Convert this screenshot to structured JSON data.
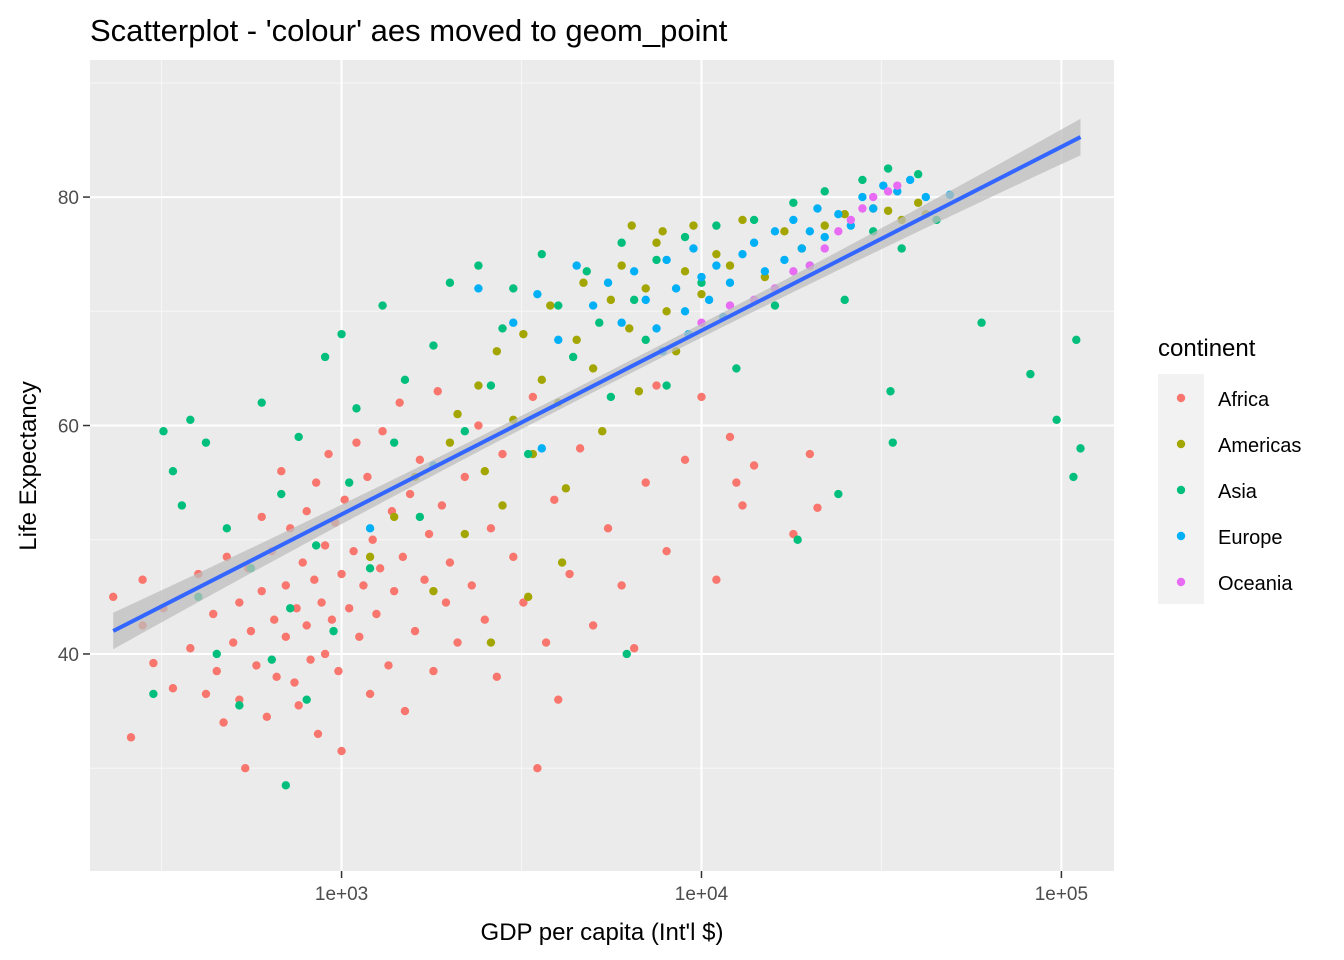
{
  "chart_data": {
    "type": "scatter",
    "title": "Scatterplot - 'colour' aes moved to geom_point",
    "xlabel": "GDP per capita (Int'l $)",
    "ylabel": "Life Expectancy",
    "x_scale": "log10",
    "xlim": [
      200,
      140000
    ],
    "ylim": [
      21,
      92
    ],
    "x_ticks": [
      {
        "value": 1000,
        "label": "1e+03"
      },
      {
        "value": 10000,
        "label": "1e+04"
      },
      {
        "value": 100000,
        "label": "1e+05"
      }
    ],
    "y_ticks": [
      {
        "value": 40,
        "label": "40"
      },
      {
        "value": 60,
        "label": "60"
      },
      {
        "value": 80,
        "label": "80"
      }
    ],
    "grid": true,
    "legend": {
      "title": "continent",
      "placement": "right",
      "entries": [
        {
          "label": "Africa",
          "color": "#F8766D"
        },
        {
          "label": "Americas",
          "color": "#A3A500"
        },
        {
          "label": "Asia",
          "color": "#00BF7D"
        },
        {
          "label": "Europe",
          "color": "#00B0F6"
        },
        {
          "label": "Oceania",
          "color": "#E76BF3"
        }
      ]
    },
    "series": [
      {
        "name": "Africa",
        "color": "#F8766D",
        "points": [
          [
            232,
            45.0
          ],
          [
            280,
            46.5
          ],
          [
            260,
            32.7
          ],
          [
            300,
            39.2
          ],
          [
            280,
            42.5
          ],
          [
            320,
            44.0
          ],
          [
            340,
            37.0
          ],
          [
            380,
            40.5
          ],
          [
            400,
            47.0
          ],
          [
            420,
            36.5
          ],
          [
            440,
            43.5
          ],
          [
            450,
            38.5
          ],
          [
            470,
            34.0
          ],
          [
            480,
            48.5
          ],
          [
            500,
            41.0
          ],
          [
            520,
            44.5
          ],
          [
            520,
            36.0
          ],
          [
            540,
            30.0
          ],
          [
            550,
            47.5
          ],
          [
            560,
            42.0
          ],
          [
            580,
            39.0
          ],
          [
            600,
            45.5
          ],
          [
            600,
            52.0
          ],
          [
            620,
            34.5
          ],
          [
            640,
            49.0
          ],
          [
            650,
            43.0
          ],
          [
            660,
            38.0
          ],
          [
            680,
            56.0
          ],
          [
            700,
            46.0
          ],
          [
            700,
            41.5
          ],
          [
            720,
            51.0
          ],
          [
            740,
            37.5
          ],
          [
            750,
            44.0
          ],
          [
            760,
            35.5
          ],
          [
            780,
            48.0
          ],
          [
            800,
            42.5
          ],
          [
            800,
            52.5
          ],
          [
            820,
            39.5
          ],
          [
            840,
            46.5
          ],
          [
            850,
            55.0
          ],
          [
            860,
            33.0
          ],
          [
            880,
            44.5
          ],
          [
            900,
            49.5
          ],
          [
            900,
            40.0
          ],
          [
            920,
            57.5
          ],
          [
            940,
            43.0
          ],
          [
            960,
            51.5
          ],
          [
            980,
            38.5
          ],
          [
            1000,
            47.0
          ],
          [
            1000,
            31.5
          ],
          [
            1020,
            53.5
          ],
          [
            1050,
            44.0
          ],
          [
            1080,
            49.0
          ],
          [
            1100,
            58.5
          ],
          [
            1120,
            41.5
          ],
          [
            1150,
            46.0
          ],
          [
            1180,
            55.5
          ],
          [
            1200,
            36.5
          ],
          [
            1220,
            50.0
          ],
          [
            1250,
            43.5
          ],
          [
            1280,
            47.5
          ],
          [
            1300,
            59.5
          ],
          [
            1350,
            39.0
          ],
          [
            1380,
            52.5
          ],
          [
            1400,
            45.5
          ],
          [
            1450,
            62.0
          ],
          [
            1480,
            48.5
          ],
          [
            1500,
            35.0
          ],
          [
            1550,
            54.0
          ],
          [
            1600,
            42.0
          ],
          [
            1650,
            57.0
          ],
          [
            1700,
            46.5
          ],
          [
            1750,
            50.5
          ],
          [
            1800,
            38.5
          ],
          [
            1850,
            63.0
          ],
          [
            1900,
            53.0
          ],
          [
            1950,
            44.5
          ],
          [
            2000,
            48.0
          ],
          [
            2100,
            41.0
          ],
          [
            2200,
            55.5
          ],
          [
            2300,
            46.0
          ],
          [
            2400,
            60.0
          ],
          [
            2500,
            43.0
          ],
          [
            2600,
            51.0
          ],
          [
            2700,
            38.0
          ],
          [
            2800,
            57.5
          ],
          [
            3000,
            48.5
          ],
          [
            3200,
            44.5
          ],
          [
            3400,
            62.5
          ],
          [
            3500,
            30.0
          ],
          [
            3700,
            41.0
          ],
          [
            3900,
            53.5
          ],
          [
            4000,
            36.0
          ],
          [
            4300,
            47.0
          ],
          [
            4600,
            58.0
          ],
          [
            5000,
            42.5
          ],
          [
            5500,
            51.0
          ],
          [
            6000,
            46.0
          ],
          [
            6500,
            40.5
          ],
          [
            7000,
            55.0
          ],
          [
            7500,
            63.5
          ],
          [
            8000,
            49.0
          ],
          [
            9000,
            57.0
          ],
          [
            10000,
            62.5
          ],
          [
            11000,
            46.5
          ],
          [
            12000,
            59.0
          ],
          [
            12500,
            55.0
          ],
          [
            13000,
            53.0
          ],
          [
            14000,
            56.5
          ],
          [
            18000,
            50.5
          ],
          [
            20000,
            57.5
          ],
          [
            21000,
            52.8
          ]
        ]
      },
      {
        "name": "Americas",
        "color": "#A3A500",
        "points": [
          [
            1200,
            48.5
          ],
          [
            1400,
            52.0
          ],
          [
            1600,
            55.5
          ],
          [
            1800,
            45.5
          ],
          [
            2000,
            58.5
          ],
          [
            2100,
            61.0
          ],
          [
            2200,
            50.5
          ],
          [
            2400,
            63.5
          ],
          [
            2500,
            56.0
          ],
          [
            2700,
            66.5
          ],
          [
            2800,
            53.0
          ],
          [
            3000,
            60.5
          ],
          [
            3200,
            68.0
          ],
          [
            3400,
            57.5
          ],
          [
            3600,
            64.0
          ],
          [
            3800,
            70.5
          ],
          [
            4000,
            62.0
          ],
          [
            4200,
            54.5
          ],
          [
            4500,
            67.5
          ],
          [
            4700,
            72.5
          ],
          [
            5000,
            65.0
          ],
          [
            5300,
            59.5
          ],
          [
            5600,
            71.0
          ],
          [
            6000,
            74.0
          ],
          [
            6300,
            68.5
          ],
          [
            6700,
            63.0
          ],
          [
            7000,
            72.0
          ],
          [
            7500,
            76.0
          ],
          [
            8000,
            70.0
          ],
          [
            8500,
            66.5
          ],
          [
            9000,
            73.5
          ],
          [
            9500,
            77.5
          ],
          [
            10000,
            71.5
          ],
          [
            11000,
            75.0
          ],
          [
            12000,
            74.0
          ],
          [
            13000,
            78.0
          ],
          [
            15000,
            73.0
          ],
          [
            17000,
            77.0
          ],
          [
            19000,
            75.5
          ],
          [
            22000,
            77.5
          ],
          [
            25000,
            78.5
          ],
          [
            30000,
            79.0
          ],
          [
            33000,
            78.8
          ],
          [
            36000,
            78.0
          ],
          [
            40000,
            79.5
          ],
          [
            42000,
            78.5
          ],
          [
            6400,
            77.5
          ],
          [
            7800,
            77.0
          ],
          [
            2600,
            41.0
          ],
          [
            3300,
            45.0
          ],
          [
            4100,
            48.0
          ]
        ]
      },
      {
        "name": "Asia",
        "color": "#00BF7D",
        "points": [
          [
            300,
            36.5
          ],
          [
            320,
            59.5
          ],
          [
            340,
            56.0
          ],
          [
            360,
            53.0
          ],
          [
            380,
            60.5
          ],
          [
            400,
            45.0
          ],
          [
            420,
            58.5
          ],
          [
            450,
            40.0
          ],
          [
            480,
            51.0
          ],
          [
            520,
            35.5
          ],
          [
            560,
            47.5
          ],
          [
            600,
            62.0
          ],
          [
            640,
            39.5
          ],
          [
            680,
            54.0
          ],
          [
            700,
            28.5
          ],
          [
            720,
            44.0
          ],
          [
            760,
            59.0
          ],
          [
            800,
            36.0
          ],
          [
            850,
            49.5
          ],
          [
            900,
            66.0
          ],
          [
            950,
            42.0
          ],
          [
            1000,
            68.0
          ],
          [
            1050,
            55.0
          ],
          [
            1100,
            61.5
          ],
          [
            1200,
            47.5
          ],
          [
            1300,
            70.5
          ],
          [
            1400,
            58.5
          ],
          [
            1500,
            64.0
          ],
          [
            1650,
            52.0
          ],
          [
            1800,
            67.0
          ],
          [
            2000,
            72.5
          ],
          [
            2200,
            59.5
          ],
          [
            2400,
            74.0
          ],
          [
            2600,
            63.5
          ],
          [
            2800,
            68.5
          ],
          [
            3000,
            72.0
          ],
          [
            3300,
            57.5
          ],
          [
            3600,
            75.0
          ],
          [
            4000,
            70.5
          ],
          [
            4400,
            66.0
          ],
          [
            4800,
            73.5
          ],
          [
            5200,
            69.0
          ],
          [
            5600,
            62.5
          ],
          [
            6000,
            76.0
          ],
          [
            6500,
            71.0
          ],
          [
            7000,
            67.5
          ],
          [
            7500,
            74.5
          ],
          [
            8000,
            63.5
          ],
          [
            9000,
            76.5
          ],
          [
            10000,
            72.5
          ],
          [
            11000,
            77.5
          ],
          [
            12500,
            65.0
          ],
          [
            14000,
            78.0
          ],
          [
            16000,
            70.5
          ],
          [
            18000,
            79.5
          ],
          [
            20000,
            74.0
          ],
          [
            22000,
            80.5
          ],
          [
            25000,
            71.0
          ],
          [
            28000,
            81.5
          ],
          [
            30000,
            77.0
          ],
          [
            33000,
            82.5
          ],
          [
            36000,
            75.5
          ],
          [
            40000,
            82.0
          ],
          [
            45000,
            78.0
          ],
          [
            60000,
            69.0
          ],
          [
            82000,
            64.5
          ],
          [
            97000,
            60.5
          ],
          [
            108000,
            55.5
          ],
          [
            110000,
            67.5
          ],
          [
            113000,
            58.0
          ],
          [
            33500,
            63.0
          ],
          [
            34000,
            58.5
          ],
          [
            24000,
            54.0
          ],
          [
            18500,
            50.0
          ],
          [
            6200,
            40.0
          ]
        ]
      },
      {
        "name": "Europe",
        "color": "#00B0F6",
        "points": [
          [
            2400,
            72.0
          ],
          [
            3000,
            69.0
          ],
          [
            3500,
            71.5
          ],
          [
            4000,
            67.5
          ],
          [
            4500,
            74.0
          ],
          [
            5000,
            70.5
          ],
          [
            5500,
            72.5
          ],
          [
            6000,
            69.0
          ],
          [
            6500,
            73.5
          ],
          [
            7000,
            71.0
          ],
          [
            7500,
            68.5
          ],
          [
            8000,
            74.5
          ],
          [
            8500,
            72.0
          ],
          [
            9000,
            70.0
          ],
          [
            9500,
            75.5
          ],
          [
            10000,
            73.0
          ],
          [
            10500,
            71.0
          ],
          [
            11000,
            74.0
          ],
          [
            12000,
            72.5
          ],
          [
            13000,
            75.0
          ],
          [
            14000,
            76.0
          ],
          [
            15000,
            73.5
          ],
          [
            16000,
            77.0
          ],
          [
            17000,
            74.5
          ],
          [
            18000,
            78.0
          ],
          [
            19000,
            75.5
          ],
          [
            20000,
            77.0
          ],
          [
            21000,
            79.0
          ],
          [
            22000,
            76.5
          ],
          [
            24000,
            78.5
          ],
          [
            26000,
            77.5
          ],
          [
            28000,
            80.0
          ],
          [
            30000,
            79.0
          ],
          [
            32000,
            81.0
          ],
          [
            35000,
            80.5
          ],
          [
            38000,
            81.5
          ],
          [
            42000,
            80.0
          ],
          [
            49000,
            80.2
          ],
          [
            11500,
            69.5
          ],
          [
            9200,
            68.0
          ],
          [
            7800,
            66.5
          ],
          [
            3600,
            58.0
          ],
          [
            1200,
            51.0
          ],
          [
            1800,
            56.5
          ]
        ]
      },
      {
        "name": "Oceania",
        "color": "#E76BF3",
        "points": [
          [
            10000,
            69.0
          ],
          [
            12000,
            70.5
          ],
          [
            14000,
            71.0
          ],
          [
            16000,
            72.0
          ],
          [
            18000,
            73.5
          ],
          [
            20000,
            74.0
          ],
          [
            22000,
            75.5
          ],
          [
            24000,
            77.0
          ],
          [
            26000,
            78.0
          ],
          [
            28000,
            79.0
          ],
          [
            30000,
            80.0
          ],
          [
            33000,
            80.5
          ],
          [
            35000,
            81.0
          ]
        ]
      }
    ],
    "fit": {
      "method": "lm",
      "color": "#3366FF",
      "band_color": "#BDBDBD",
      "x_range": [
        232,
        113000
      ],
      "intercept": 3.95,
      "slope": 16.09,
      "se_end": 1.0
    }
  }
}
